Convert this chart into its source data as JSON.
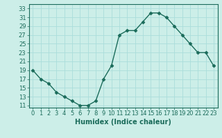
{
  "x": [
    0,
    1,
    2,
    3,
    4,
    5,
    6,
    7,
    8,
    9,
    10,
    11,
    12,
    13,
    14,
    15,
    16,
    17,
    18,
    19,
    20,
    21,
    22,
    23
  ],
  "y": [
    19,
    17,
    16,
    14,
    13,
    12,
    11,
    11,
    12,
    17,
    20,
    27,
    28,
    28,
    30,
    32,
    32,
    31,
    29,
    27,
    25,
    23,
    23,
    20
  ],
  "line_color": "#1a6b5a",
  "marker": "D",
  "marker_size": 2.5,
  "bg_color": "#cceee8",
  "grid_color": "#aaddda",
  "xlabel": "Humidex (Indice chaleur)",
  "xlim": [
    -0.5,
    23.5
  ],
  "ylim": [
    10.5,
    34
  ],
  "yticks": [
    11,
    13,
    15,
    17,
    19,
    21,
    23,
    25,
    27,
    29,
    31,
    33
  ],
  "xticks": [
    0,
    1,
    2,
    3,
    4,
    5,
    6,
    7,
    8,
    9,
    10,
    11,
    12,
    13,
    14,
    15,
    16,
    17,
    18,
    19,
    20,
    21,
    22,
    23
  ],
  "xlabel_fontsize": 7,
  "tick_fontsize": 6,
  "line_width": 1.0
}
